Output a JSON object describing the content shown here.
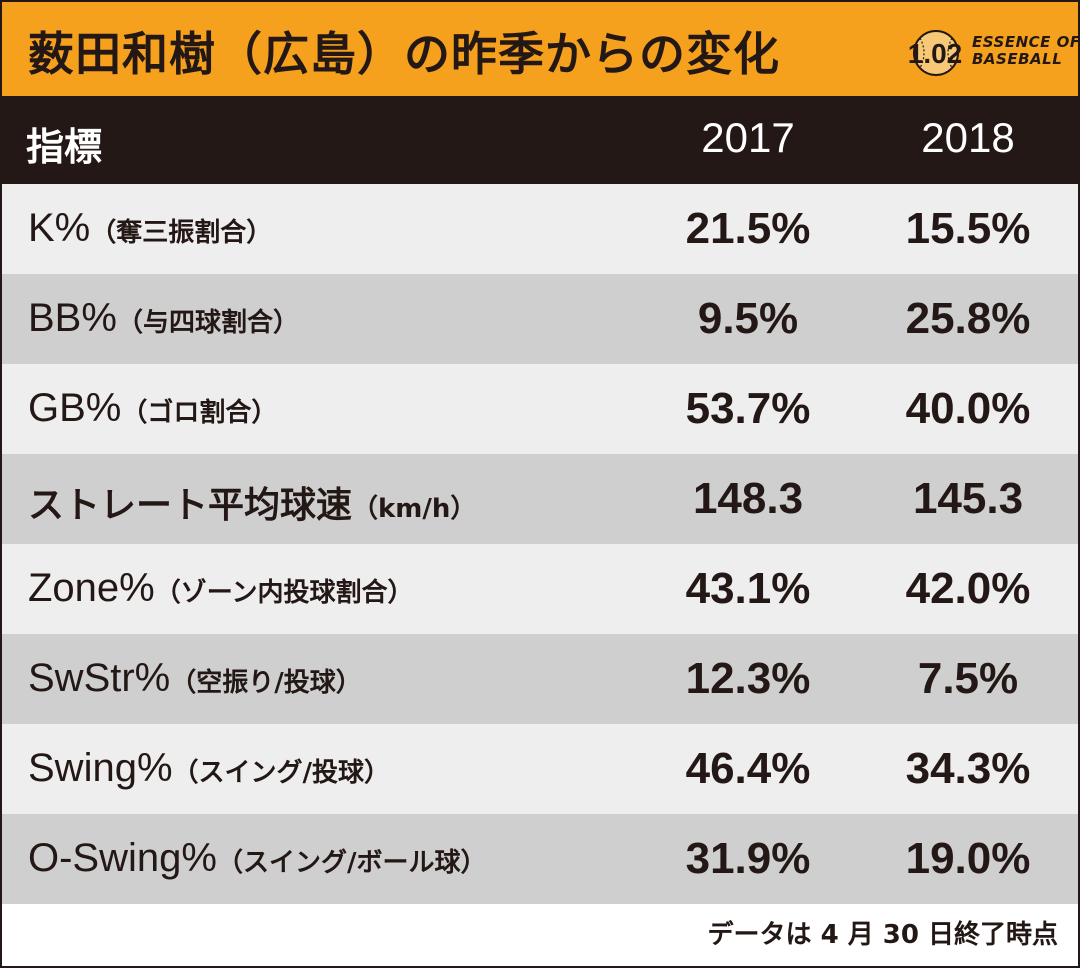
{
  "title": "薮田和樹（広島）の昨季からの変化",
  "logo": {
    "mark": "1.02",
    "line1": "ESSENCE OF",
    "line2": "BASEBALL"
  },
  "header": {
    "label": "指標",
    "col1": "2017",
    "col2": "2018"
  },
  "footer": "データは 4 月 30 日終了時点",
  "chart_data": {
    "type": "table",
    "title": "薮田和樹（広島）の昨季からの変化",
    "columns": [
      "指標",
      "2017",
      "2018"
    ],
    "rows": [
      {
        "main": "K%",
        "sub": "（奪三振割合）",
        "v2017": "21.5%",
        "v2018": "15.5%"
      },
      {
        "main": "BB%",
        "sub": "（与四球割合）",
        "v2017": "9.5%",
        "v2018": "25.8%"
      },
      {
        "main": "GB%",
        "sub": "（ゴロ割合）",
        "v2017": "53.7%",
        "v2018": "40.0%"
      },
      {
        "main": "ストレート平均球速",
        "sub": "（km/h）",
        "v2017": "148.3",
        "v2018": "145.3"
      },
      {
        "main": "Zone%",
        "sub": "（ゾーン内投球割合）",
        "v2017": "43.1%",
        "v2018": "42.0%"
      },
      {
        "main": "SwStr%",
        "sub": "（空振り/投球）",
        "v2017": "12.3%",
        "v2018": "7.5%"
      },
      {
        "main": "Swing%",
        "sub": "（スイング/投球）",
        "v2017": "46.4%",
        "v2018": "34.3%"
      },
      {
        "main": "O-Swing%",
        "sub": "（スイング/ボール球）",
        "v2017": "31.9%",
        "v2018": "19.0%"
      }
    ]
  },
  "colors": {
    "title_bg": "#f5a11d",
    "header_bg": "#231815",
    "row_light": "#eeeeee",
    "row_dark": "#cfcfcf",
    "text": "#231815"
  }
}
